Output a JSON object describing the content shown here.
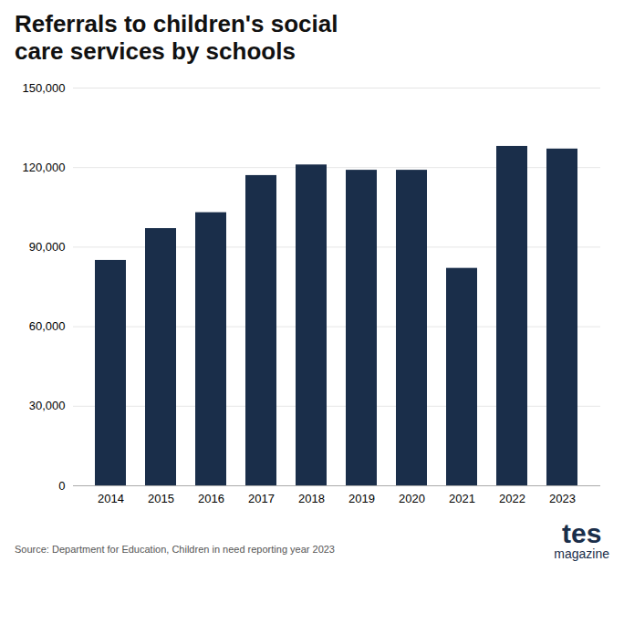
{
  "chart_data": {
    "type": "bar",
    "title": "Referrals to children's social\ncare services by schools",
    "categories": [
      "2014",
      "2015",
      "2016",
      "2017",
      "2018",
      "2019",
      "2020",
      "2021",
      "2022",
      "2023"
    ],
    "values": [
      85000,
      97000,
      103000,
      117000,
      121000,
      119000,
      119000,
      82000,
      128000,
      127000
    ],
    "color": "#1a2e4a",
    "ylim": [
      0,
      150000
    ],
    "yticks": [
      0,
      {
        "value": 30000,
        "label": "30,000"
      },
      {
        "value": 60000,
        "label": "60,000"
      },
      {
        "value": 90000,
        "label": "90,000"
      },
      {
        "value": 120000,
        "label": "120,000"
      },
      {
        "value": 150000,
        "label": "150,000"
      }
    ],
    "grid": true,
    "annotations": [
      "Source: Department for Education, Children in need reporting year 2023",
      "tes",
      "magazine"
    ]
  }
}
